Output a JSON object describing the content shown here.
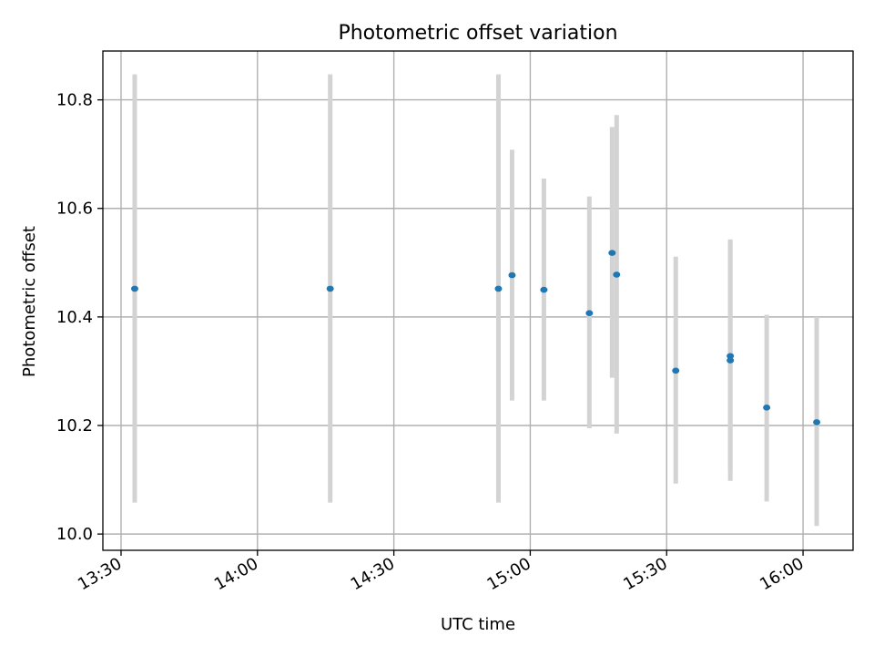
{
  "chart_data": {
    "type": "scatter",
    "title": "Photometric offset variation",
    "xlabel": "UTC time",
    "ylabel": "Photometric offset",
    "x_type": "time",
    "xlim": [
      "13:26",
      "16:11"
    ],
    "ylim": [
      9.97,
      10.89
    ],
    "x_ticks": [
      "13:30",
      "14:00",
      "14:30",
      "15:00",
      "15:30",
      "16:00"
    ],
    "y_ticks": [
      10.0,
      10.2,
      10.4,
      10.6,
      10.8
    ],
    "y_tick_labels": [
      "10.0",
      "10.2",
      "10.4",
      "10.6",
      "10.8"
    ],
    "grid": true,
    "point_color": "#1f77b4",
    "errorbar_color": "#d3d3d3",
    "series": [
      {
        "points": [
          {
            "x": "13:33",
            "y": 10.452,
            "ylow": 10.058,
            "yhigh": 10.847
          },
          {
            "x": "14:16",
            "y": 10.452,
            "ylow": 10.058,
            "yhigh": 10.847
          },
          {
            "x": "14:53",
            "y": 10.452,
            "ylow": 10.058,
            "yhigh": 10.847
          },
          {
            "x": "14:56",
            "y": 10.477,
            "ylow": 10.246,
            "yhigh": 10.708
          },
          {
            "x": "15:03",
            "y": 10.45,
            "ylow": 10.246,
            "yhigh": 10.655
          },
          {
            "x": "15:13",
            "y": 10.407,
            "ylow": 10.195,
            "yhigh": 10.622
          },
          {
            "x": "15:18",
            "y": 10.518,
            "ylow": 10.288,
            "yhigh": 10.75
          },
          {
            "x": "15:19",
            "y": 10.478,
            "ylow": 10.185,
            "yhigh": 10.772
          },
          {
            "x": "15:32",
            "y": 10.301,
            "ylow": 10.093,
            "yhigh": 10.511
          },
          {
            "x": "15:44",
            "y": 10.32,
            "ylow": 10.098,
            "yhigh": 10.543
          },
          {
            "x": "15:44",
            "y": 10.328,
            "ylow": 10.116,
            "yhigh": 10.539
          },
          {
            "x": "15:52",
            "y": 10.233,
            "ylow": 10.06,
            "yhigh": 10.404
          },
          {
            "x": "16:03",
            "y": 10.206,
            "ylow": 10.015,
            "yhigh": 10.4
          }
        ]
      }
    ]
  }
}
